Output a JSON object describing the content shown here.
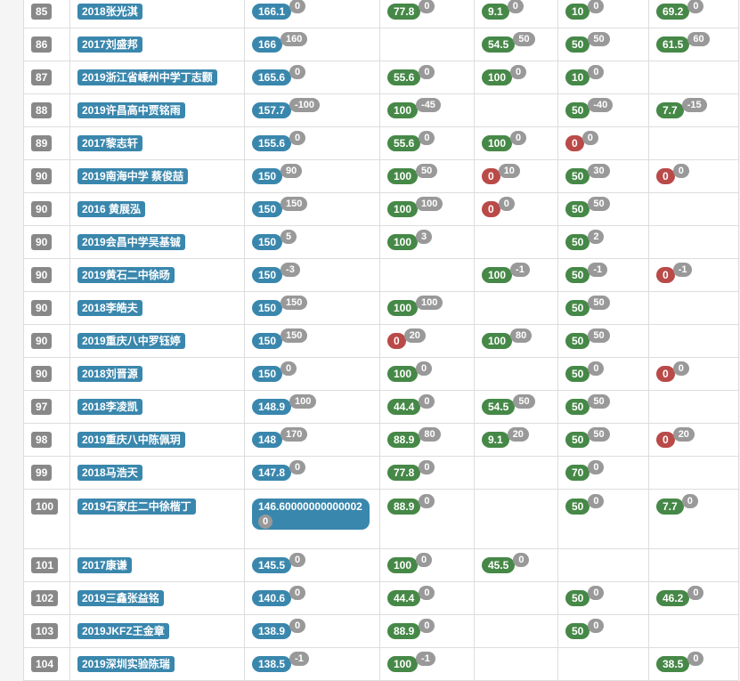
{
  "colors": {
    "total": "#3a87ad",
    "full": "#468847",
    "zero": "#b94a48",
    "delta": "#999999",
    "rank_label": "#888888"
  },
  "rows": [
    {
      "rank": "85",
      "name": "2018张光淇",
      "total": "166.1",
      "total_delta": "0",
      "p1": "77.8",
      "p1_delta": "0",
      "p1_color": "green",
      "p2": "9.1",
      "p2_delta": "0",
      "p2_color": "green",
      "p3": "10",
      "p3_delta": "0",
      "p3_color": "green",
      "p4": "69.2",
      "p4_delta": "0",
      "p4_color": "green"
    },
    {
      "rank": "86",
      "name": "2017刘盛邦",
      "total": "166",
      "total_delta": "160",
      "p1": "",
      "p1_delta": "",
      "p1_color": "",
      "p2": "54.5",
      "p2_delta": "50",
      "p2_color": "green",
      "p3": "50",
      "p3_delta": "50",
      "p3_color": "green",
      "p4": "61.5",
      "p4_delta": "60",
      "p4_color": "green"
    },
    {
      "rank": "87",
      "name": "2019浙江省嵊州中学丁志颢",
      "total": "165.6",
      "total_delta": "0",
      "p1": "55.6",
      "p1_delta": "0",
      "p1_color": "green",
      "p2": "100",
      "p2_delta": "0",
      "p2_color": "green",
      "p3": "10",
      "p3_delta": "0",
      "p3_color": "green",
      "p4": "",
      "p4_delta": "",
      "p4_color": ""
    },
    {
      "rank": "88",
      "name": "2019许昌高中贾铭雨",
      "total": "157.7",
      "total_delta": "-100",
      "p1": "100",
      "p1_delta": "-45",
      "p1_color": "green",
      "p2": "",
      "p2_delta": "",
      "p2_color": "",
      "p3": "50",
      "p3_delta": "-40",
      "p3_color": "green",
      "p4": "7.7",
      "p4_delta": "-15",
      "p4_color": "green"
    },
    {
      "rank": "89",
      "name": "2017黎志轩",
      "total": "155.6",
      "total_delta": "0",
      "p1": "55.6",
      "p1_delta": "0",
      "p1_color": "green",
      "p2": "100",
      "p2_delta": "0",
      "p2_color": "green",
      "p3": "0",
      "p3_delta": "0",
      "p3_color": "red",
      "p4": "",
      "p4_delta": "",
      "p4_color": ""
    },
    {
      "rank": "90",
      "name": "2019南海中学 蔡俊喆",
      "total": "150",
      "total_delta": "90",
      "p1": "100",
      "p1_delta": "50",
      "p1_color": "green",
      "p2": "0",
      "p2_delta": "10",
      "p2_color": "red",
      "p3": "50",
      "p3_delta": "30",
      "p3_color": "green",
      "p4": "0",
      "p4_delta": "0",
      "p4_color": "red"
    },
    {
      "rank": "90",
      "name": "2016 黄展泓",
      "total": "150",
      "total_delta": "150",
      "p1": "100",
      "p1_delta": "100",
      "p1_color": "green",
      "p2": "0",
      "p2_delta": "0",
      "p2_color": "red",
      "p3": "50",
      "p3_delta": "50",
      "p3_color": "green",
      "p4": "",
      "p4_delta": "",
      "p4_color": ""
    },
    {
      "rank": "90",
      "name": "2019会昌中学吴基铖",
      "total": "150",
      "total_delta": "5",
      "p1": "100",
      "p1_delta": "3",
      "p1_color": "green",
      "p2": "",
      "p2_delta": "",
      "p2_color": "",
      "p3": "50",
      "p3_delta": "2",
      "p3_color": "green",
      "p4": "",
      "p4_delta": "",
      "p4_color": ""
    },
    {
      "rank": "90",
      "name": "2019黄石二中徐旸",
      "total": "150",
      "total_delta": "-3",
      "p1": "",
      "p1_delta": "",
      "p1_color": "",
      "p2": "100",
      "p2_delta": "-1",
      "p2_color": "green",
      "p3": "50",
      "p3_delta": "-1",
      "p3_color": "green",
      "p4": "0",
      "p4_delta": "-1",
      "p4_color": "red"
    },
    {
      "rank": "90",
      "name": "2018李皓夫",
      "total": "150",
      "total_delta": "150",
      "p1": "100",
      "p1_delta": "100",
      "p1_color": "green",
      "p2": "",
      "p2_delta": "",
      "p2_color": "",
      "p3": "50",
      "p3_delta": "50",
      "p3_color": "green",
      "p4": "",
      "p4_delta": "",
      "p4_color": ""
    },
    {
      "rank": "90",
      "name": "2019重庆八中罗钰婷",
      "total": "150",
      "total_delta": "150",
      "p1": "0",
      "p1_delta": "20",
      "p1_color": "red",
      "p2": "100",
      "p2_delta": "80",
      "p2_color": "green",
      "p3": "50",
      "p3_delta": "50",
      "p3_color": "green",
      "p4": "",
      "p4_delta": "",
      "p4_color": ""
    },
    {
      "rank": "90",
      "name": "2018刘晋源",
      "total": "150",
      "total_delta": "0",
      "p1": "100",
      "p1_delta": "0",
      "p1_color": "green",
      "p2": "",
      "p2_delta": "",
      "p2_color": "",
      "p3": "50",
      "p3_delta": "0",
      "p3_color": "green",
      "p4": "0",
      "p4_delta": "0",
      "p4_color": "red"
    },
    {
      "rank": "97",
      "name": "2018李凌凯",
      "total": "148.9",
      "total_delta": "100",
      "p1": "44.4",
      "p1_delta": "0",
      "p1_color": "green",
      "p2": "54.5",
      "p2_delta": "50",
      "p2_color": "green",
      "p3": "50",
      "p3_delta": "50",
      "p3_color": "green",
      "p4": "",
      "p4_delta": "",
      "p4_color": ""
    },
    {
      "rank": "98",
      "name": "2019重庆八中陈佩玥",
      "total": "148",
      "total_delta": "170",
      "p1": "88.9",
      "p1_delta": "80",
      "p1_color": "green",
      "p2": "9.1",
      "p2_delta": "20",
      "p2_color": "green",
      "p3": "50",
      "p3_delta": "50",
      "p3_color": "green",
      "p4": "0",
      "p4_delta": "20",
      "p4_color": "red"
    },
    {
      "rank": "99",
      "name": "2018马浩天",
      "total": "147.8",
      "total_delta": "0",
      "p1": "77.8",
      "p1_delta": "0",
      "p1_color": "green",
      "p2": "",
      "p2_delta": "",
      "p2_color": "",
      "p3": "70",
      "p3_delta": "0",
      "p3_color": "green",
      "p4": "",
      "p4_delta": "",
      "p4_color": ""
    },
    {
      "rank": "100",
      "name": "2019石家庄二中徐楷丁",
      "total": "146.60000000000002",
      "total_delta": "0",
      "wrap": true,
      "p1": "88.9",
      "p1_delta": "0",
      "p1_color": "green",
      "p2": "",
      "p2_delta": "",
      "p2_color": "",
      "p3": "50",
      "p3_delta": "0",
      "p3_color": "green",
      "p4": "7.7",
      "p4_delta": "0",
      "p4_color": "green"
    },
    {
      "rank": "101",
      "name": "2017康谦",
      "total": "145.5",
      "total_delta": "0",
      "p1": "100",
      "p1_delta": "0",
      "p1_color": "green",
      "p2": "45.5",
      "p2_delta": "0",
      "p2_color": "green",
      "p3": "",
      "p3_delta": "",
      "p3_color": "",
      "p4": "",
      "p4_delta": "",
      "p4_color": ""
    },
    {
      "rank": "102",
      "name": "2019三鑫张益铭",
      "total": "140.6",
      "total_delta": "0",
      "p1": "44.4",
      "p1_delta": "0",
      "p1_color": "green",
      "p2": "",
      "p2_delta": "",
      "p2_color": "",
      "p3": "50",
      "p3_delta": "0",
      "p3_color": "green",
      "p4": "46.2",
      "p4_delta": "0",
      "p4_color": "green"
    },
    {
      "rank": "103",
      "name": "2019JKFZ王金章",
      "total": "138.9",
      "total_delta": "0",
      "p1": "88.9",
      "p1_delta": "0",
      "p1_color": "green",
      "p2": "",
      "p2_delta": "",
      "p2_color": "",
      "p3": "50",
      "p3_delta": "0",
      "p3_color": "green",
      "p4": "",
      "p4_delta": "",
      "p4_color": ""
    },
    {
      "rank": "104",
      "name": "2019深圳实验陈瑞",
      "total": "138.5",
      "total_delta": "-1",
      "p1": "100",
      "p1_delta": "-1",
      "p1_color": "green",
      "p2": "",
      "p2_delta": "",
      "p2_color": "",
      "p3": "",
      "p3_delta": "",
      "p3_color": "",
      "p4": "38.5",
      "p4_delta": "0",
      "p4_color": "green"
    }
  ]
}
